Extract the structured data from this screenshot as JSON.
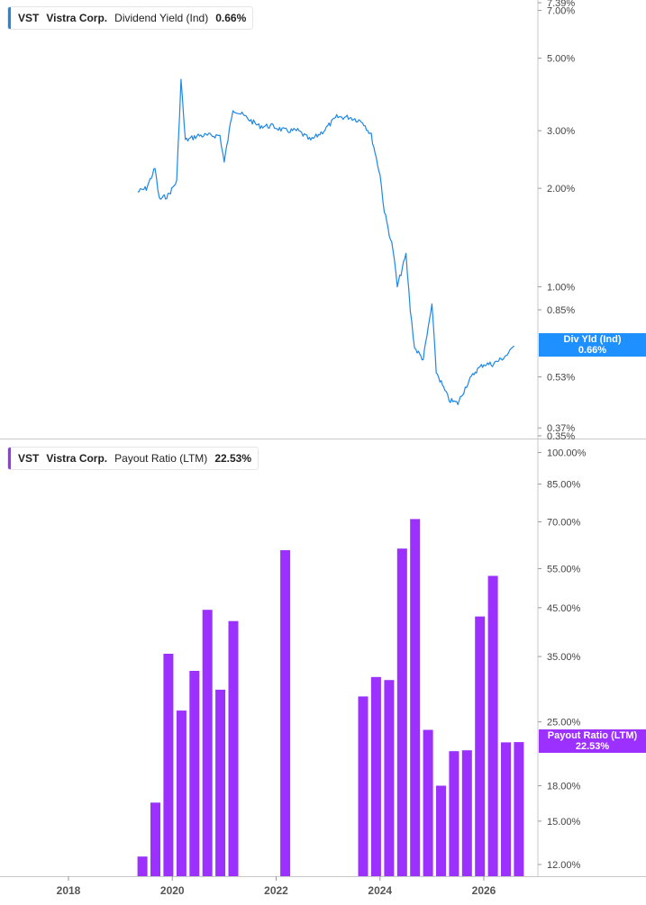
{
  "panel_top": {
    "legend": {
      "ticker": "VST",
      "company": "Vistra Corp.",
      "metric": "Dividend Yield (Ind)",
      "value": "0.66%"
    },
    "price_tag": {
      "label": "Div Yld (Ind)",
      "value": "0.66%"
    },
    "colors": {
      "line": "#1e88e5",
      "tag": "#1e90ff"
    }
  },
  "panel_bottom": {
    "legend": {
      "ticker": "VST",
      "company": "Vistra Corp.",
      "metric": "Payout Ratio (LTM)",
      "value": "22.53%"
    },
    "price_tag": {
      "label": "Payout Ratio (LTM)",
      "value": "22.53%"
    },
    "colors": {
      "bar": "#9b30ff",
      "tag": "#9b30ff"
    }
  },
  "chart_data": [
    {
      "type": "line",
      "series": [
        {
          "name": "Dividend Yield (Ind)"
        }
      ],
      "yscale": "log",
      "ylim": [
        0.35,
        7.39
      ],
      "yticks": [
        "7.39%",
        "7.00%",
        "5.00%",
        "3.00%",
        "2.00%",
        "1.00%",
        "0.85%",
        "0.53%",
        "0.37%",
        "0.35%"
      ],
      "ytick_values": [
        7.39,
        7.0,
        5.0,
        3.0,
        2.0,
        1.0,
        0.85,
        0.53,
        0.37,
        0.35
      ],
      "x": [
        "2019-05",
        "2019-07",
        "2019-09",
        "2019-10",
        "2019-12",
        "2020-02",
        "2020-03",
        "2020-04",
        "2020-07",
        "2020-10",
        "2020-12",
        "2021-01",
        "2021-03",
        "2021-06",
        "2021-09",
        "2021-12",
        "2022-03",
        "2022-06",
        "2022-09",
        "2022-12",
        "2023-03",
        "2023-06",
        "2023-09",
        "2023-11",
        "2024-01",
        "2024-02",
        "2024-04",
        "2024-05",
        "2024-07",
        "2024-08",
        "2024-09",
        "2024-11",
        "2025-01",
        "2025-02",
        "2025-04",
        "2025-05",
        "2025-07",
        "2025-09",
        "2025-11",
        "2026-01",
        "2026-03",
        "2026-05",
        "2026-07",
        "2026-08"
      ],
      "values": [
        1.95,
        2.0,
        2.3,
        1.85,
        1.9,
        2.1,
        4.3,
        2.8,
        2.9,
        2.9,
        2.9,
        2.4,
        3.5,
        3.3,
        3.1,
        3.1,
        3.0,
        3.0,
        2.8,
        3.0,
        3.3,
        3.3,
        3.2,
        2.9,
        2.2,
        1.7,
        1.3,
        1.0,
        1.25,
        0.85,
        0.65,
        0.6,
        0.88,
        0.55,
        0.48,
        0.45,
        0.44,
        0.5,
        0.55,
        0.58,
        0.58,
        0.6,
        0.63,
        0.66
      ],
      "xticks": [
        "2018",
        "2020",
        "2022",
        "2024",
        "2026"
      ],
      "grid": false,
      "legend": "top-left"
    },
    {
      "type": "bar",
      "series": [
        {
          "name": "Payout Ratio (LTM)"
        }
      ],
      "yscale": "log",
      "ylim": [
        11.3,
        105
      ],
      "yticks": [
        "100.00%",
        "85.00%",
        "70.00%",
        "55.00%",
        "45.00%",
        "35.00%",
        "25.00%",
        "18.00%",
        "15.00%",
        "12.00%"
      ],
      "ytick_values": [
        100,
        85,
        70,
        55,
        45,
        35,
        25,
        18,
        15,
        12
      ],
      "x": [
        "2019-06",
        "2019-09",
        "2019-12",
        "2020-03",
        "2020-06",
        "2020-09",
        "2020-12",
        "2021-03",
        "2022-03",
        "2023-09",
        "2023-12",
        "2024-03",
        "2024-06",
        "2024-09",
        "2024-12",
        "2025-03",
        "2025-06",
        "2025-09",
        "2025-12",
        "2026-03",
        "2026-06",
        "2026-09"
      ],
      "values": [
        12.5,
        16.5,
        35.5,
        26.5,
        32.5,
        44.5,
        29.5,
        42.0,
        60.5,
        28.5,
        31.5,
        31.0,
        61.0,
        71.0,
        24.0,
        18.0,
        21.5,
        21.6,
        43.0,
        53.0,
        22.5,
        22.53
      ],
      "xticks": [
        "2018",
        "2020",
        "2022",
        "2024",
        "2026"
      ],
      "grid": false,
      "legend": "top-left"
    }
  ]
}
